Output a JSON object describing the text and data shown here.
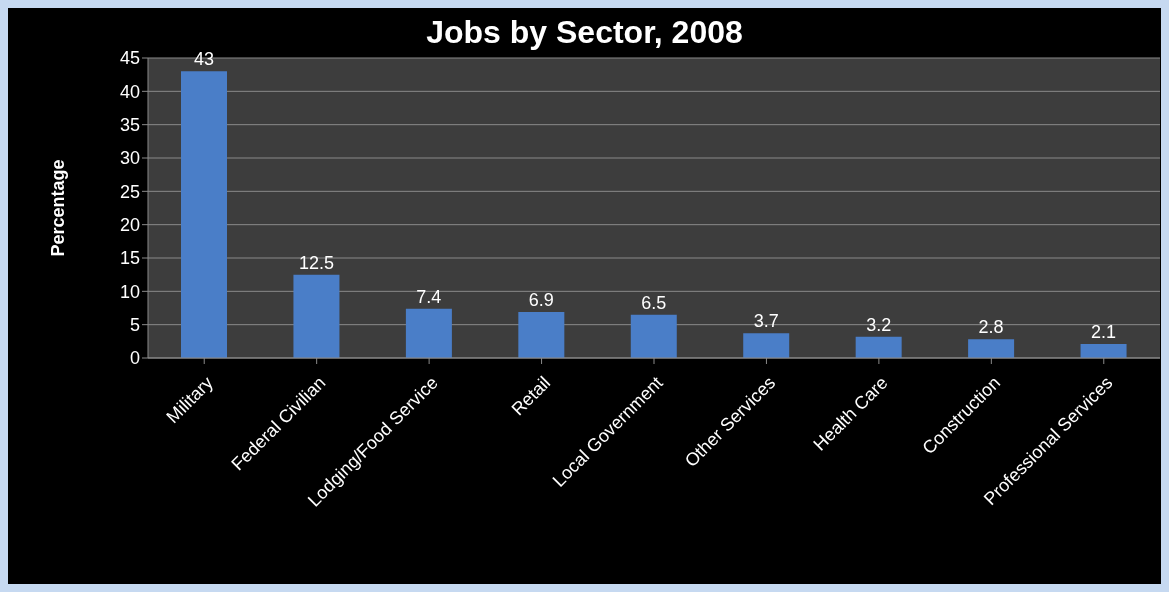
{
  "chart_data": {
    "type": "bar",
    "title": "Jobs by Sector, 2008",
    "ylabel": "Percentage",
    "categories": [
      "Military",
      "Federal Civilian",
      "Lodging/Food Service",
      "Retail",
      "Local Government",
      "Other Services",
      "Health Care",
      "Construction",
      "Professional Services"
    ],
    "values": [
      43,
      12.5,
      7.4,
      6.9,
      6.5,
      3.7,
      3.2,
      2.8,
      2.1
    ],
    "color": "#4a7ec8",
    "ylim": [
      0,
      45
    ],
    "yticks": [
      0,
      5,
      10,
      15,
      20,
      25,
      30,
      35,
      40,
      45
    ],
    "grid": "y",
    "data_labels": true,
    "legend": false
  }
}
